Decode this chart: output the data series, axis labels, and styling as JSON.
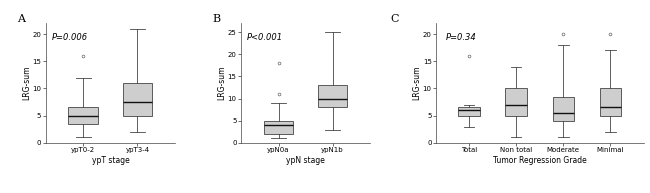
{
  "panels": [
    {
      "label": "A",
      "pvalue": "P=0.006",
      "xlabel": "ypT stage",
      "ylabel": "LRG-sum",
      "ylim": [
        0,
        22
      ],
      "yticks": [
        0,
        5,
        10,
        15,
        20
      ],
      "boxes": [
        {
          "label": "ypT0-2",
          "whisker_low": 1,
          "q1": 3.5,
          "median": 5,
          "q3": 6.5,
          "whisker_high": 12,
          "outliers": [
            16
          ]
        },
        {
          "label": "ypT3-4",
          "whisker_low": 2,
          "q1": 5,
          "median": 7.5,
          "q3": 11,
          "whisker_high": 21,
          "outliers": []
        }
      ]
    },
    {
      "label": "B",
      "pvalue": "P<0.001",
      "xlabel": "ypN stage",
      "ylabel": "LRG-sum",
      "ylim": [
        0,
        27
      ],
      "yticks": [
        0,
        5,
        10,
        15,
        20,
        25
      ],
      "boxes": [
        {
          "label": "ypN0a",
          "whisker_low": 1,
          "q1": 2,
          "median": 4,
          "q3": 5,
          "whisker_high": 9,
          "outliers": [
            11,
            18
          ]
        },
        {
          "label": "ypN1b",
          "whisker_low": 3,
          "q1": 8,
          "median": 10,
          "q3": 13,
          "whisker_high": 25,
          "outliers": []
        }
      ]
    },
    {
      "label": "C",
      "pvalue": "P=0.34",
      "xlabel": "Tumor Regression Grade",
      "ylabel": "LRG-sum",
      "ylim": [
        0,
        22
      ],
      "yticks": [
        0,
        5,
        10,
        15,
        20
      ],
      "boxes": [
        {
          "label": "Total",
          "whisker_low": 3,
          "q1": 5,
          "median": 6,
          "q3": 6.5,
          "whisker_high": 7,
          "outliers": [
            16
          ]
        },
        {
          "label": "Non total",
          "whisker_low": 1,
          "q1": 5,
          "median": 7,
          "q3": 10,
          "whisker_high": 14,
          "outliers": []
        },
        {
          "label": "Moderate",
          "whisker_low": 1,
          "q1": 4,
          "median": 5.5,
          "q3": 8.5,
          "whisker_high": 18,
          "outliers": [
            20
          ]
        },
        {
          "label": "Minimal",
          "whisker_low": 2,
          "q1": 5,
          "median": 6.5,
          "q3": 10,
          "whisker_high": 17,
          "outliers": [
            20
          ]
        }
      ]
    }
  ],
  "box_color": "#cecece",
  "box_edge_color": "#444444",
  "median_color": "#111111",
  "whisker_color": "#444444",
  "flier_color": "#666666",
  "background_color": "#ffffff",
  "fontsize_label": 5.5,
  "fontsize_tick": 5.0,
  "fontsize_pvalue": 6.0,
  "fontsize_panel_label": 8.0
}
